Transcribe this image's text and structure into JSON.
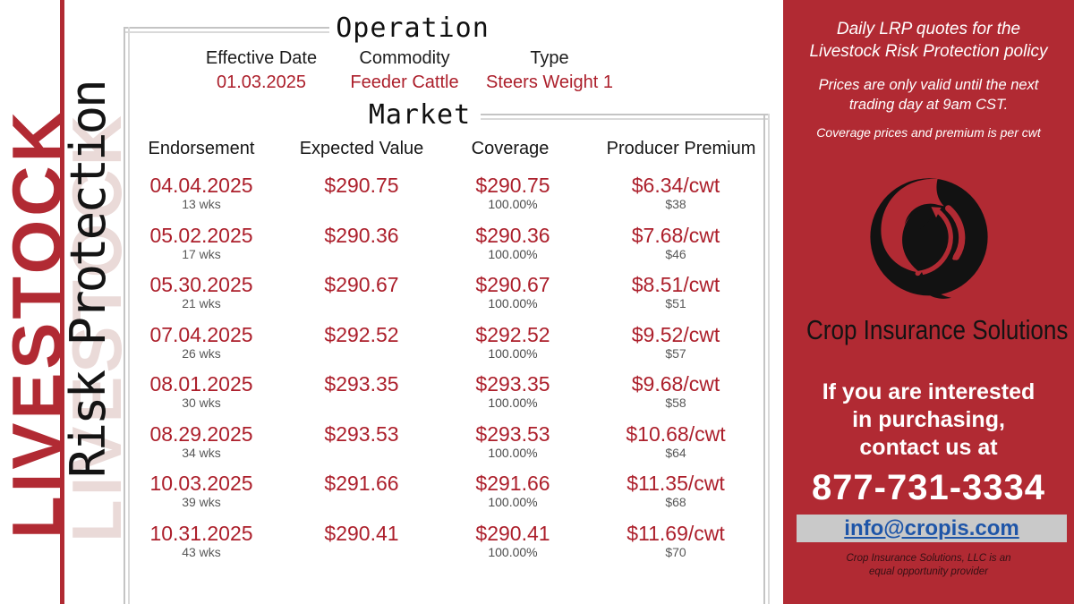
{
  "colors": {
    "brand_red": "#B12A33",
    "text_red": "#AC1F2B",
    "shadow_pink": "#EADAD8",
    "border_gray": "#C4C4C4",
    "email_blue": "#1E55A8",
    "bar_gray": "#C9C9C9"
  },
  "left_banner": {
    "primary": "LIVESTOCK",
    "secondary": "Risk Protection"
  },
  "operation": {
    "title": "Operation",
    "fields": [
      {
        "label": "Effective Date",
        "value": "01.03.2025"
      },
      {
        "label": "Commodity",
        "value": "Feeder Cattle"
      },
      {
        "label": "Type",
        "value": "Steers Weight 1"
      }
    ]
  },
  "market": {
    "title": "Market",
    "headers": [
      "Endorsement",
      "Expected Value",
      "Coverage",
      "Producer Premium"
    ],
    "rows": [
      {
        "end_date": "04.04.2025",
        "weeks": "13 wks",
        "expected_value": "$290.75",
        "coverage_price": "$290.75",
        "coverage_level": "100.00%",
        "premium_rate": "$6.34/cwt",
        "premium_total": "$38"
      },
      {
        "end_date": "05.02.2025",
        "weeks": "17 wks",
        "expected_value": "$290.36",
        "coverage_price": "$290.36",
        "coverage_level": "100.00%",
        "premium_rate": "$7.68/cwt",
        "premium_total": "$46"
      },
      {
        "end_date": "05.30.2025",
        "weeks": "21 wks",
        "expected_value": "$290.67",
        "coverage_price": "$290.67",
        "coverage_level": "100.00%",
        "premium_rate": "$8.51/cwt",
        "premium_total": "$51"
      },
      {
        "end_date": "07.04.2025",
        "weeks": "26 wks",
        "expected_value": "$292.52",
        "coverage_price": "$292.52",
        "coverage_level": "100.00%",
        "premium_rate": "$9.52/cwt",
        "premium_total": "$57"
      },
      {
        "end_date": "08.01.2025",
        "weeks": "30 wks",
        "expected_value": "$293.35",
        "coverage_price": "$293.35",
        "coverage_level": "100.00%",
        "premium_rate": "$9.68/cwt",
        "premium_total": "$58"
      },
      {
        "end_date": "08.29.2025",
        "weeks": "34 wks",
        "expected_value": "$293.53",
        "coverage_price": "$293.53",
        "coverage_level": "100.00%",
        "premium_rate": "$10.68/cwt",
        "premium_total": "$64"
      },
      {
        "end_date": "10.03.2025",
        "weeks": "39 wks",
        "expected_value": "$291.66",
        "coverage_price": "$291.66",
        "coverage_level": "100.00%",
        "premium_rate": "$11.35/cwt",
        "premium_total": "$68"
      },
      {
        "end_date": "10.31.2025",
        "weeks": "43 wks",
        "expected_value": "$290.41",
        "coverage_price": "$290.41",
        "coverage_level": "100.00%",
        "premium_rate": "$11.69/cwt",
        "premium_total": "$70"
      }
    ]
  },
  "sidebar": {
    "intro": "Daily LRP quotes for the Livestock Risk Protection policy",
    "validity": "Prices are only valid until the next trading day at 9am CST.",
    "unit_note": "Coverage prices and premium is per cwt",
    "logo_text": "Crop Insurance Solutions",
    "contact_lines": [
      "If you are interested",
      "in purchasing,",
      "contact us at"
    ],
    "phone": "877-731-3334",
    "email": "info@cropis.com",
    "disclaimer": "Crop Insurance Solutions, LLC is an equal opportunity provider"
  }
}
